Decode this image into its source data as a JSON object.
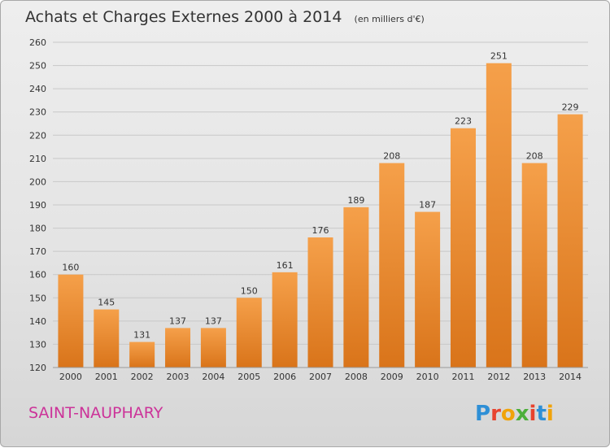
{
  "chart_data": {
    "type": "bar",
    "title": "Achats et Charges Externes 2000 à 2014",
    "subtitle": "(en milliers d'€)",
    "categories": [
      "2000",
      "2001",
      "2002",
      "2003",
      "2004",
      "2005",
      "2006",
      "2007",
      "2008",
      "2009",
      "2010",
      "2011",
      "2012",
      "2013",
      "2014"
    ],
    "values": [
      160,
      145,
      131,
      137,
      137,
      150,
      161,
      176,
      189,
      208,
      187,
      223,
      251,
      208,
      229
    ],
    "ylim": [
      120,
      260
    ],
    "yticks": [
      120,
      130,
      140,
      150,
      160,
      170,
      180,
      190,
      200,
      210,
      220,
      230,
      240,
      250,
      260
    ],
    "xlabel": "",
    "ylabel": "",
    "grid": true,
    "bar_color_top": "#f5a04a",
    "bar_color_bottom": "#d9741a"
  },
  "footer": {
    "commune": "SAINT-NAUPHARY",
    "brand": "Proxiti",
    "commune_color": "#cc3399"
  }
}
